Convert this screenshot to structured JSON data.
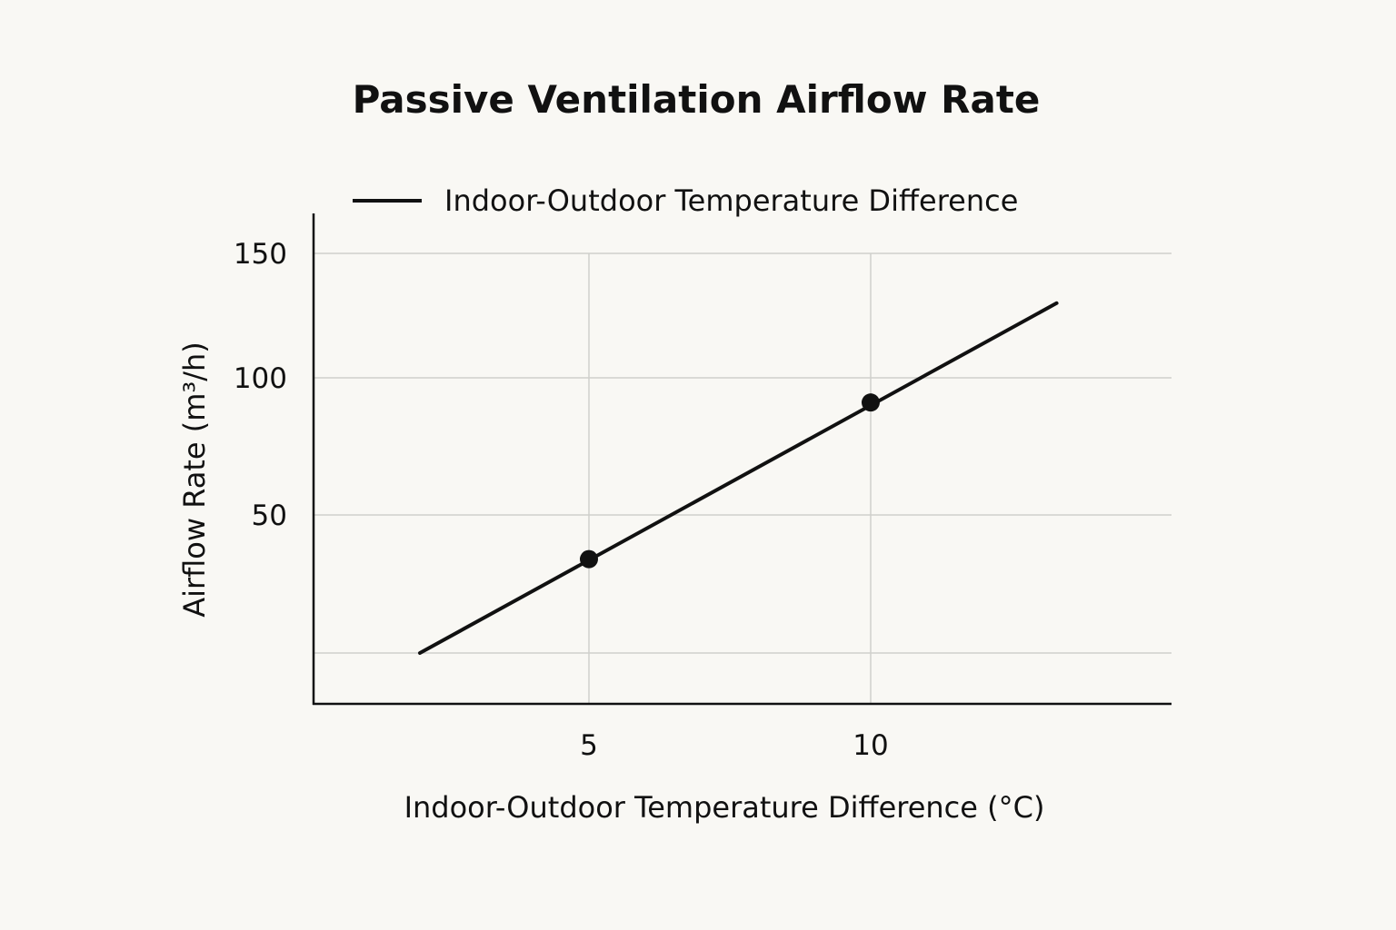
{
  "chart_data": {
    "type": "line",
    "title": "Passive Ventilation Airflow Rate",
    "xlabel": "Indoor-Outdoor Temperature Difference (°C)",
    "ylabel": "Airflow Rate (m³/h)",
    "legend": {
      "position": "top",
      "entries": [
        "Indoor-Outdoor Temperature Difference"
      ]
    },
    "grid": true,
    "x_ticks": [
      5,
      10
    ],
    "y_ticks": [
      50,
      100,
      150
    ],
    "y_gridlines": [
      0,
      50,
      100,
      150
    ],
    "xlim": [
      0,
      15
    ],
    "ylim": [
      -20,
      160
    ],
    "series": [
      {
        "name": "Indoor-Outdoor Temperature Difference",
        "color": "#111111",
        "line": {
          "x": [
            2,
            13.3
          ],
          "y": [
            0,
            130
          ]
        },
        "markers": {
          "x": [
            5,
            10
          ],
          "y": [
            34,
            91
          ]
        }
      }
    ]
  }
}
